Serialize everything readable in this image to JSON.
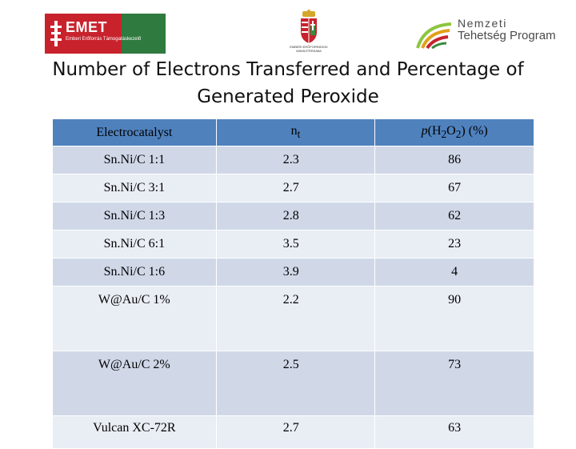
{
  "logos": {
    "emet": {
      "name": "EMET",
      "subtitle": "Emberi Erőforrás Támogatáskezelő"
    },
    "crest": {
      "caption": "EMBERI ERŐFORRÁSOK MINISZTÉRIUMA"
    },
    "ntp": {
      "line1": "Nemzeti",
      "line2": "Tehetség Program"
    }
  },
  "title": "Number of Electrons Transferred and Percentage of Generated Peroxide",
  "table": {
    "headers": {
      "col1": "Electrocatalyst",
      "col2_base": "n",
      "col2_sub": "t",
      "col3_p": "p",
      "col3_open": "(H",
      "col3_sub1": "2",
      "col3_mid": "O",
      "col3_sub2": "2",
      "col3_close": ") (%)"
    },
    "rows": [
      {
        "catalyst": "Sn.Ni/C 1:1",
        "nt": "2.3",
        "peroxide": "86"
      },
      {
        "catalyst": "Sn.Ni/C 3:1",
        "nt": "2.7",
        "peroxide": "67"
      },
      {
        "catalyst": "Sn.Ni/C 1:3",
        "nt": "2.8",
        "peroxide": "62"
      },
      {
        "catalyst": "Sn.Ni/C 6:1",
        "nt": "3.5",
        "peroxide": "23"
      },
      {
        "catalyst": "Sn.Ni/C 1:6",
        "nt": "3.9",
        "peroxide": "4"
      },
      {
        "catalyst": "W@Au/C 1%",
        "nt": "2.2",
        "peroxide": "90"
      },
      {
        "catalyst": "W@Au/C 2%",
        "nt": "2.5",
        "peroxide": "73"
      },
      {
        "catalyst": "Vulcan XC-72R",
        "nt": "2.7",
        "peroxide": "63"
      }
    ]
  },
  "colors": {
    "header_blue": "#4f81bd",
    "row_dark": "#d0d8e8",
    "row_light": "#e9edf4",
    "emet_red": "#c8232d",
    "emet_green": "#2f7a3f"
  }
}
